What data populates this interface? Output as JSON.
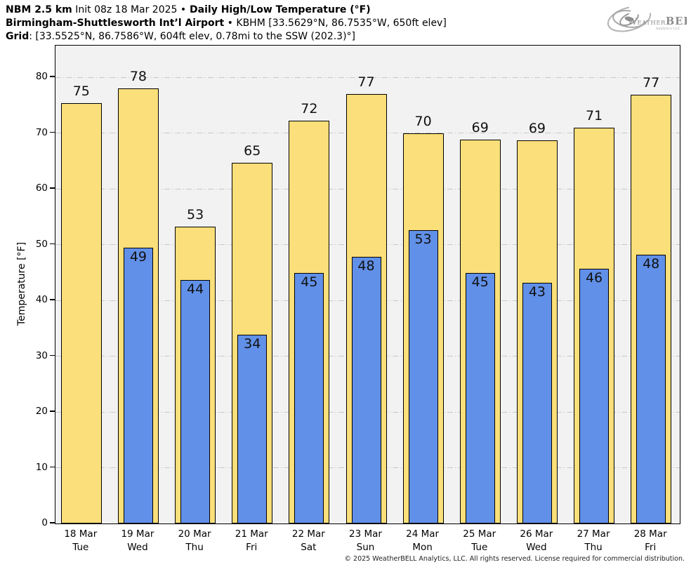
{
  "header": {
    "model": "NBM 2.5 km",
    "init": " Init 08z 18 Mar 2025 ",
    "bullet": "•",
    "product": " Daily High/Low Temperature (°F)",
    "station": "Birmingham-Shuttlesworth Int’l Airport",
    "station_bullet": " • ",
    "station_meta": "KBHM [33.5629°N, 86.7535°W, 650ft elev]",
    "grid_label": "Grid",
    "grid_meta": ": [33.5525°N, 86.7586°W, 604ft elev, 0.78mi to the SSW (202.3)°]"
  },
  "logo": {
    "w": "W",
    "eather": "EATHER",
    "bell": "BELL",
    "sub": "Analytics LLC"
  },
  "footer": {
    "copyright": "© 2025 WeatherBELL Analytics, LLC. All rights reserved. License required for commercial distribution."
  },
  "chart_data": {
    "type": "bar",
    "title": "NBM 2.5 km Init 08z 18 Mar 2025 • Daily High/Low Temperature (°F)",
    "subtitle": "Birmingham-Shuttlesworth Int’l Airport • KBHM",
    "xlabel": "",
    "ylabel": "Temperature [°F]",
    "ylim": [
      0,
      86
    ],
    "yticks": [
      0,
      10,
      20,
      30,
      40,
      50,
      60,
      70,
      80
    ],
    "grid": true,
    "legend": false,
    "plot_bg": "#f2f2f2",
    "grid_color": "#c9c9c9",
    "bar_edge": "#000000",
    "categories": [
      {
        "date": "18 Mar",
        "day": "Tue"
      },
      {
        "date": "19 Mar",
        "day": "Wed"
      },
      {
        "date": "20 Mar",
        "day": "Thu"
      },
      {
        "date": "21 Mar",
        "day": "Fri"
      },
      {
        "date": "22 Mar",
        "day": "Sat"
      },
      {
        "date": "23 Mar",
        "day": "Sun"
      },
      {
        "date": "24 Mar",
        "day": "Mon"
      },
      {
        "date": "25 Mar",
        "day": "Tue"
      },
      {
        "date": "26 Mar",
        "day": "Wed"
      },
      {
        "date": "27 Mar",
        "day": "Thu"
      },
      {
        "date": "28 Mar",
        "day": "Fri"
      }
    ],
    "series": [
      {
        "name": "Daily High",
        "color": "#FBDF7A",
        "values": [
          75.3,
          78.0,
          53.2,
          64.7,
          72.2,
          77.0,
          69.9,
          68.8,
          68.7,
          70.9,
          76.9
        ],
        "labels": [
          75,
          78,
          53,
          65,
          72,
          77,
          70,
          69,
          69,
          71,
          77
        ]
      },
      {
        "name": "Daily Low",
        "color": "#6190E8",
        "values": [
          null,
          49.4,
          43.6,
          33.8,
          44.9,
          47.8,
          52.6,
          44.9,
          43.2,
          45.7,
          48.2
        ],
        "labels": [
          null,
          49,
          44,
          34,
          45,
          48,
          53,
          45,
          43,
          46,
          48
        ]
      }
    ]
  }
}
